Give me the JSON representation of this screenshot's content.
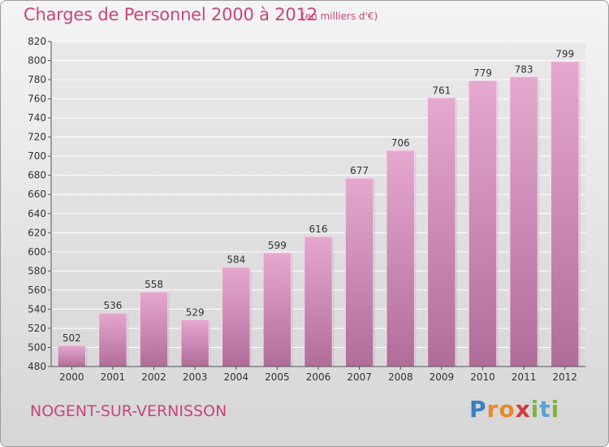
{
  "header": {
    "title": "Charges de Personnel 2000 à 2012",
    "unit": "(en milliers d'€)"
  },
  "footer": {
    "commune": "NOGENT-SUR-VERNISSON",
    "logo_letters": [
      "P",
      "r",
      "o",
      "x",
      "i",
      "t",
      "i"
    ],
    "logo_colors": [
      "#3a7fc4",
      "#e8892a",
      "#e8892a",
      "#d23a3a",
      "#7cb342",
      "#5aa0d8",
      "#7cb342"
    ]
  },
  "colors": {
    "bar_top": "#e6a8cf",
    "bar_bottom": "#b06d99",
    "accent": "#c8457a",
    "grid": "#ffffff"
  },
  "chart_data": {
    "type": "bar",
    "categories": [
      "2000",
      "2001",
      "2002",
      "2003",
      "2004",
      "2005",
      "2006",
      "2007",
      "2008",
      "2009",
      "2010",
      "2011",
      "2012"
    ],
    "values": [
      502,
      536,
      558,
      529,
      584,
      599,
      616,
      677,
      706,
      761,
      779,
      783,
      799
    ],
    "ylim": [
      480,
      820
    ],
    "yticks": [
      480,
      500,
      520,
      540,
      560,
      580,
      600,
      620,
      640,
      660,
      680,
      700,
      720,
      740,
      760,
      780,
      800,
      820
    ],
    "grid": true,
    "data_labels": true
  }
}
